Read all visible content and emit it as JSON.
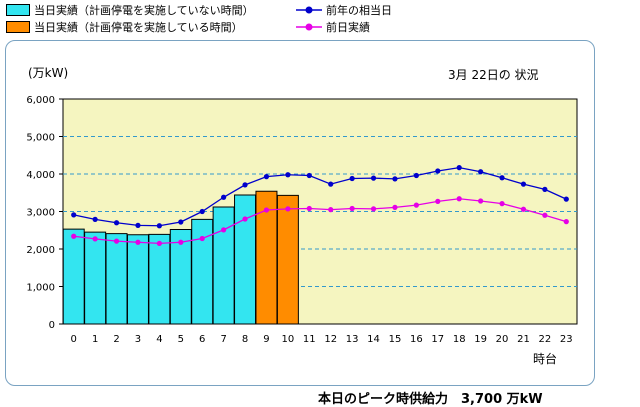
{
  "legend": {
    "cyan": "当日実績（計画停電を実施していない時間）",
    "orange": "当日実績（計画停電を実施している時間）",
    "blue": "前年の相当日",
    "magenta": "前日実績"
  },
  "chart_data": {
    "type": "bar",
    "unit_label": "(万kW)",
    "date_note": "3月 22日の 状況",
    "xlabel": "時台",
    "ylim": [
      0,
      6000
    ],
    "yticks": [
      "0",
      "1,000",
      "2,000",
      "3,000",
      "4,000",
      "5,000",
      "6,000"
    ],
    "ytick_values": [
      0,
      1000,
      2000,
      3000,
      4000,
      5000,
      6000
    ],
    "categories": [
      "0",
      "1",
      "2",
      "3",
      "4",
      "5",
      "6",
      "7",
      "8",
      "9",
      "10",
      "11",
      "12",
      "13",
      "14",
      "15",
      "16",
      "17",
      "18",
      "19",
      "20",
      "21",
      "22",
      "23"
    ],
    "bars": [
      {
        "name": "当日実績（計画停電を実施していない時間）",
        "color": "#33e5f0",
        "values": [
          2530,
          2450,
          2410,
          2380,
          2390,
          2520,
          2790,
          3120,
          3440,
          null,
          null
        ]
      },
      {
        "name": "当日実績（計画停電を実施している時間）",
        "color": "#ff8c00",
        "values": [
          null,
          null,
          null,
          null,
          null,
          null,
          null,
          null,
          null,
          3540,
          3430
        ]
      }
    ],
    "lines": [
      {
        "name": "前年の相当日",
        "color": "#0000cc",
        "values": [
          2910,
          2790,
          2700,
          2630,
          2620,
          2720,
          3000,
          3380,
          3710,
          3930,
          3980,
          3960,
          3730,
          3880,
          3890,
          3870,
          3960,
          4080,
          4170,
          4060,
          3900,
          3730,
          3590,
          3330
        ]
      },
      {
        "name": "前日実績",
        "color": "#e600e6",
        "values": [
          2340,
          2270,
          2210,
          2180,
          2150,
          2180,
          2280,
          2510,
          2800,
          3040,
          3070,
          3080,
          3050,
          3080,
          3070,
          3110,
          3170,
          3270,
          3340,
          3280,
          3210,
          3060,
          2900,
          2730
        ]
      }
    ],
    "plot_bg": "#f5f5c0",
    "grid": true
  },
  "footer_text": "本日のピーク時供給力　3,700 万kW"
}
